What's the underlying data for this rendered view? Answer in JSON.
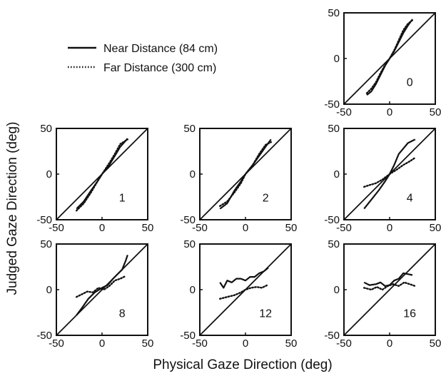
{
  "chart_data": {
    "type": "line",
    "xlabel": "Physical Gaze Direction (deg)",
    "ylabel": "Judged Gaze Direction (deg)",
    "xlim": [
      -50,
      50
    ],
    "ylim": [
      -50,
      50
    ],
    "x_ticks": [
      "-50",
      "0",
      "50"
    ],
    "y_ticks": [
      "50",
      "0",
      "-50"
    ],
    "grid": false,
    "legend_placement": "top-left",
    "legend": [
      {
        "label": "Near Distance (84 cm)",
        "style": "solid"
      },
      {
        "label": "Far Distance (300 cm)",
        "style": "dotted"
      }
    ],
    "panels": [
      {
        "id": "0",
        "near": [
          [
            -25,
            -40
          ],
          [
            -20,
            -36
          ],
          [
            -15,
            -28
          ],
          [
            -10,
            -18
          ],
          [
            -5,
            -8
          ],
          [
            0,
            0
          ],
          [
            5,
            8
          ],
          [
            10,
            18
          ],
          [
            15,
            28
          ],
          [
            20,
            36
          ],
          [
            25,
            43
          ]
        ],
        "far": [
          [
            -25,
            -38
          ],
          [
            -20,
            -33
          ],
          [
            -15,
            -26
          ],
          [
            -10,
            -16
          ],
          [
            -5,
            -7
          ],
          [
            0,
            0
          ],
          [
            5,
            9
          ],
          [
            10,
            20
          ],
          [
            15,
            31
          ],
          [
            20,
            38
          ],
          [
            25,
            42
          ]
        ]
      },
      {
        "id": "1",
        "near": [
          [
            -28,
            -38
          ],
          [
            -20,
            -30
          ],
          [
            -12,
            -18
          ],
          [
            -5,
            -8
          ],
          [
            0,
            0
          ],
          [
            8,
            10
          ],
          [
            14,
            20
          ],
          [
            20,
            30
          ],
          [
            28,
            39
          ]
        ],
        "far": [
          [
            -28,
            -40
          ],
          [
            -20,
            -32
          ],
          [
            -12,
            -20
          ],
          [
            -5,
            -8
          ],
          [
            0,
            0
          ],
          [
            8,
            12
          ],
          [
            14,
            22
          ],
          [
            20,
            33
          ],
          [
            28,
            38
          ]
        ]
      },
      {
        "id": "2",
        "near": [
          [
            -28,
            -38
          ],
          [
            -20,
            -32
          ],
          [
            -12,
            -18
          ],
          [
            -5,
            -8
          ],
          [
            0,
            0
          ],
          [
            8,
            10
          ],
          [
            15,
            20
          ],
          [
            22,
            30
          ],
          [
            28,
            38
          ]
        ],
        "far": [
          [
            -28,
            -35
          ],
          [
            -20,
            -30
          ],
          [
            -12,
            -20
          ],
          [
            -5,
            -10
          ],
          [
            0,
            0
          ],
          [
            8,
            10
          ],
          [
            15,
            22
          ],
          [
            22,
            32
          ],
          [
            28,
            35
          ]
        ]
      },
      {
        "id": "4",
        "near": [
          [
            -28,
            -38
          ],
          [
            -20,
            -28
          ],
          [
            -12,
            -18
          ],
          [
            -5,
            -8
          ],
          [
            0,
            0
          ],
          [
            5,
            10
          ],
          [
            10,
            22
          ],
          [
            15,
            28
          ],
          [
            20,
            34
          ],
          [
            28,
            38
          ]
        ],
        "far": [
          [
            -28,
            -14
          ],
          [
            -22,
            -12
          ],
          [
            -15,
            -10
          ],
          [
            -8,
            -6
          ],
          [
            0,
            0
          ],
          [
            8,
            5
          ],
          [
            15,
            10
          ],
          [
            22,
            14
          ],
          [
            28,
            18
          ]
        ]
      },
      {
        "id": "8",
        "near": [
          [
            -28,
            -28
          ],
          [
            -22,
            -20
          ],
          [
            -15,
            -10
          ],
          [
            -8,
            -3
          ],
          [
            0,
            2
          ],
          [
            6,
            5
          ],
          [
            12,
            12
          ],
          [
            18,
            18
          ],
          [
            22,
            22
          ],
          [
            26,
            32
          ],
          [
            28,
            38
          ]
        ],
        "far": [
          [
            -28,
            -8
          ],
          [
            -22,
            -5
          ],
          [
            -16,
            -2
          ],
          [
            -10,
            -3
          ],
          [
            -4,
            2
          ],
          [
            2,
            0
          ],
          [
            8,
            4
          ],
          [
            14,
            10
          ],
          [
            20,
            12
          ],
          [
            26,
            15
          ]
        ]
      },
      {
        "id": "12",
        "near": [
          [
            -28,
            8
          ],
          [
            -24,
            2
          ],
          [
            -20,
            10
          ],
          [
            -15,
            8
          ],
          [
            -10,
            12
          ],
          [
            -5,
            12
          ],
          [
            0,
            10
          ],
          [
            5,
            14
          ],
          [
            10,
            14
          ],
          [
            15,
            18
          ],
          [
            20,
            20
          ],
          [
            25,
            24
          ]
        ],
        "far": [
          [
            -28,
            -10
          ],
          [
            -20,
            -8
          ],
          [
            -12,
            -6
          ],
          [
            -5,
            -3
          ],
          [
            0,
            0
          ],
          [
            6,
            2
          ],
          [
            12,
            3
          ],
          [
            18,
            2
          ],
          [
            24,
            5
          ]
        ]
      },
      {
        "id": "16",
        "near": [
          [
            -28,
            8
          ],
          [
            -22,
            5
          ],
          [
            -15,
            6
          ],
          [
            -10,
            8
          ],
          [
            -5,
            4
          ],
          [
            0,
            5
          ],
          [
            5,
            10
          ],
          [
            10,
            12
          ],
          [
            15,
            18
          ],
          [
            20,
            17
          ],
          [
            25,
            16
          ]
        ],
        "far": [
          [
            -28,
            2
          ],
          [
            -20,
            0
          ],
          [
            -14,
            3
          ],
          [
            -8,
            0
          ],
          [
            -2,
            4
          ],
          [
            4,
            6
          ],
          [
            10,
            4
          ],
          [
            16,
            8
          ],
          [
            22,
            6
          ],
          [
            28,
            4
          ]
        ]
      }
    ]
  }
}
